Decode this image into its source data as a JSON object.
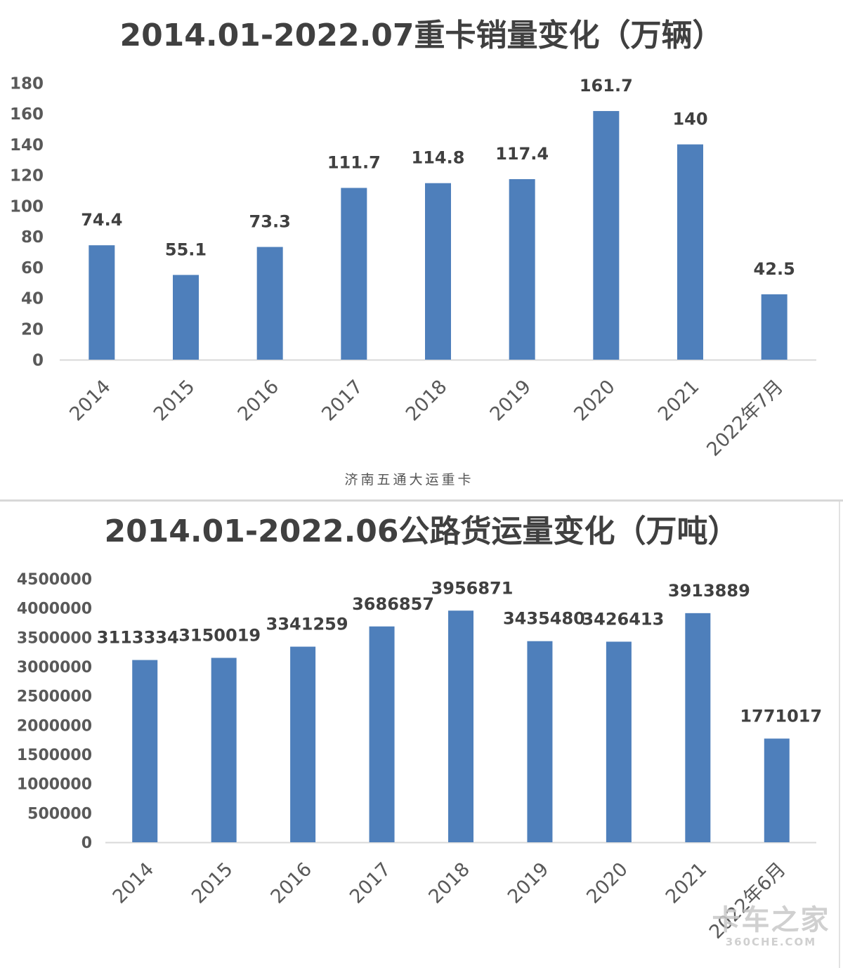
{
  "chart_data": [
    {
      "type": "bar",
      "title": "2014.01-2022.07重卡销量变化（万辆）",
      "categories": [
        "2014",
        "2015",
        "2016",
        "2017",
        "2018",
        "2019",
        "2020",
        "2021",
        "2022年7月"
      ],
      "values": [
        74.4,
        55.1,
        73.3,
        111.7,
        114.8,
        117.4,
        161.7,
        140,
        42.5
      ],
      "data_labels": [
        "74.4",
        "55.1",
        "73.3",
        "111.7",
        "114.8",
        "117.4",
        "161.7",
        "140",
        "42.5"
      ],
      "yticks": [
        0,
        20,
        40,
        60,
        80,
        100,
        120,
        140,
        160,
        180
      ],
      "ylim": [
        0,
        180
      ],
      "xlabel": "",
      "ylabel": "",
      "bar_color": "#4e7fbb",
      "grid": false
    },
    {
      "type": "bar",
      "title": "2014.01-2022.06公路货运量变化（万吨）",
      "categories": [
        "2014",
        "2015",
        "2016",
        "2017",
        "2018",
        "2019",
        "2020",
        "2021",
        "2022年6月"
      ],
      "values": [
        3113334,
        3150019,
        3341259,
        3686857,
        3956871,
        3435480,
        3426413,
        3913889,
        1771017
      ],
      "data_labels": [
        "3113334",
        "3150019",
        "3341259",
        "3686857",
        "3956871",
        "3435480",
        "3426413",
        "3913889",
        "1771017"
      ],
      "yticks": [
        0,
        500000,
        1000000,
        1500000,
        2000000,
        2500000,
        3000000,
        3500000,
        4000000,
        4500000
      ],
      "ylim": [
        0,
        4500000
      ],
      "xlabel": "",
      "ylabel": "",
      "bar_color": "#4e7fbb",
      "grid": false
    }
  ],
  "credit": "济南五通大运重卡",
  "watermark": {
    "main": "卡车之家",
    "sub": "360CHE.COM"
  }
}
